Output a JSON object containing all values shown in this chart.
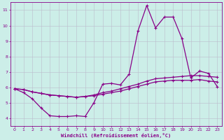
{
  "xlabel": "Windchill (Refroidissement éolien,°C)",
  "xlim": [
    -0.5,
    23.5
  ],
  "ylim": [
    3.5,
    11.5
  ],
  "xticks": [
    0,
    1,
    2,
    3,
    4,
    5,
    6,
    7,
    8,
    9,
    10,
    11,
    12,
    13,
    14,
    15,
    16,
    17,
    18,
    19,
    20,
    21,
    22,
    23
  ],
  "yticks": [
    4,
    5,
    6,
    7,
    8,
    9,
    10,
    11
  ],
  "bg_color": "#cceee8",
  "line_color": "#880088",
  "grid_color": "#bbbbcc",
  "line1_x": [
    0,
    1,
    2,
    3,
    4,
    5,
    6,
    7,
    8,
    9,
    10,
    11,
    12,
    13,
    14,
    15,
    16,
    17,
    18,
    19,
    20,
    21,
    22,
    23
  ],
  "line1_y": [
    5.9,
    5.65,
    5.25,
    4.65,
    4.15,
    4.1,
    4.1,
    4.15,
    4.1,
    5.0,
    6.2,
    6.25,
    6.15,
    6.85,
    9.65,
    11.3,
    9.85,
    10.55,
    10.55,
    9.15,
    6.6,
    7.05,
    6.9,
    6.05
  ],
  "line2_x": [
    0,
    1,
    2,
    3,
    4,
    5,
    6,
    7,
    8,
    9,
    10,
    11,
    12,
    13,
    14,
    15,
    16,
    17,
    18,
    19,
    20,
    21,
    22,
    23
  ],
  "line2_y": [
    5.9,
    5.85,
    5.7,
    5.6,
    5.5,
    5.45,
    5.4,
    5.35,
    5.4,
    5.45,
    5.55,
    5.65,
    5.75,
    5.9,
    6.05,
    6.2,
    6.35,
    6.4,
    6.45,
    6.45,
    6.45,
    6.5,
    6.4,
    6.35
  ],
  "line3_x": [
    0,
    1,
    2,
    3,
    4,
    5,
    6,
    7,
    8,
    9,
    10,
    11,
    12,
    13,
    14,
    15,
    16,
    17,
    18,
    19,
    20,
    21,
    22,
    23
  ],
  "line3_y": [
    5.9,
    5.85,
    5.7,
    5.6,
    5.5,
    5.45,
    5.4,
    5.35,
    5.4,
    5.5,
    5.65,
    5.75,
    5.9,
    6.05,
    6.2,
    6.4,
    6.55,
    6.6,
    6.65,
    6.7,
    6.75,
    6.75,
    6.7,
    6.65
  ],
  "markersize": 2.5,
  "linewidth": 0.9
}
